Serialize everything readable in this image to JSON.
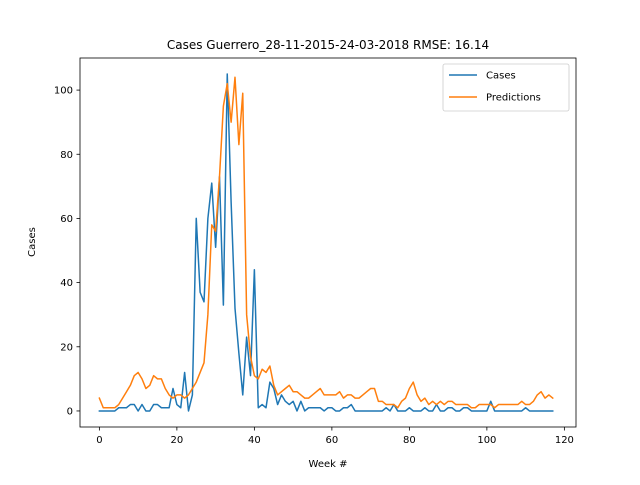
{
  "chart_data": {
    "type": "line",
    "title": "Cases Guerrero_28-11-2015-24-03-2018 RMSE: 16.14",
    "xlabel": "Week #",
    "ylabel": "Cases",
    "xlim": [
      -5,
      123
    ],
    "ylim": [
      -5,
      110
    ],
    "xticks": [
      0,
      20,
      40,
      60,
      80,
      100,
      120
    ],
    "yticks": [
      0,
      20,
      40,
      60,
      80,
      100
    ],
    "xtick_labels": [
      "0",
      "20",
      "40",
      "60",
      "80",
      "100",
      "120"
    ],
    "ytick_labels": [
      "0",
      "20",
      "40",
      "60",
      "80",
      "100"
    ],
    "grid": false,
    "legend_position": "top-right",
    "series": [
      {
        "name": "Cases",
        "color": "#1f77b4",
        "x": [
          0,
          1,
          2,
          3,
          4,
          5,
          6,
          7,
          8,
          9,
          10,
          11,
          12,
          13,
          14,
          15,
          16,
          17,
          18,
          19,
          20,
          21,
          22,
          23,
          24,
          25,
          26,
          27,
          28,
          29,
          30,
          31,
          32,
          33,
          34,
          35,
          36,
          37,
          38,
          39,
          40,
          41,
          42,
          43,
          44,
          45,
          46,
          47,
          48,
          49,
          50,
          51,
          52,
          53,
          54,
          55,
          56,
          57,
          58,
          59,
          60,
          61,
          62,
          63,
          64,
          65,
          66,
          67,
          68,
          69,
          70,
          71,
          72,
          73,
          74,
          75,
          76,
          77,
          78,
          79,
          80,
          81,
          82,
          83,
          84,
          85,
          86,
          87,
          88,
          89,
          90,
          91,
          92,
          93,
          94,
          95,
          96,
          97,
          98,
          99,
          100,
          101,
          102,
          103,
          104,
          105,
          106,
          107,
          108,
          109,
          110,
          111,
          112,
          113,
          114,
          115,
          116,
          117
        ],
        "values": [
          0,
          0,
          0,
          0,
          0,
          1,
          1,
          1,
          2,
          2,
          0,
          2,
          0,
          0,
          2,
          2,
          1,
          1,
          1,
          7,
          2,
          1,
          12,
          0,
          5,
          60,
          37,
          34,
          60,
          71,
          51,
          73,
          33,
          105,
          65,
          32,
          18,
          5,
          23,
          11,
          44,
          1,
          2,
          1,
          9,
          7,
          2,
          5,
          3,
          2,
          3,
          0,
          3,
          0,
          1,
          1,
          1,
          1,
          0,
          1,
          1,
          0,
          0,
          1,
          1,
          2,
          0,
          0,
          0,
          0,
          0,
          0,
          0,
          0,
          1,
          0,
          2,
          0,
          0,
          0,
          1,
          0,
          0,
          0,
          1,
          0,
          0,
          2,
          0,
          0,
          1,
          1,
          0,
          0,
          1,
          1,
          0,
          0,
          0,
          0,
          0,
          3,
          0,
          0,
          0,
          0,
          0,
          0,
          0,
          0,
          1,
          0,
          0,
          0,
          0,
          0,
          0,
          0
        ]
      },
      {
        "name": "Predictions",
        "color": "#ff7f0e",
        "x": [
          0,
          1,
          2,
          3,
          4,
          5,
          6,
          7,
          8,
          9,
          10,
          11,
          12,
          13,
          14,
          15,
          16,
          17,
          18,
          19,
          20,
          21,
          22,
          23,
          24,
          25,
          26,
          27,
          28,
          29,
          30,
          31,
          32,
          33,
          34,
          35,
          36,
          37,
          38,
          39,
          40,
          41,
          42,
          43,
          44,
          45,
          46,
          47,
          48,
          49,
          50,
          51,
          52,
          53,
          54,
          55,
          56,
          57,
          58,
          59,
          60,
          61,
          62,
          63,
          64,
          65,
          66,
          67,
          68,
          69,
          70,
          71,
          72,
          73,
          74,
          75,
          76,
          77,
          78,
          79,
          80,
          81,
          82,
          83,
          84,
          85,
          86,
          87,
          88,
          89,
          90,
          91,
          92,
          93,
          94,
          95,
          96,
          97,
          98,
          99,
          100,
          101,
          102,
          103,
          104,
          105,
          106,
          107,
          108,
          109,
          110,
          111,
          112,
          113,
          114,
          115,
          116,
          117
        ],
        "values": [
          4,
          1,
          1,
          1,
          1,
          2,
          4,
          6,
          8,
          11,
          12,
          10,
          7,
          8,
          11,
          10,
          10,
          7,
          5,
          4,
          5,
          5,
          4,
          5,
          7,
          9,
          12,
          15,
          30,
          58,
          56,
          73,
          95,
          102,
          90,
          104,
          83,
          99,
          30,
          17,
          11,
          10,
          13,
          12,
          14,
          8,
          5,
          6,
          7,
          8,
          6,
          6,
          5,
          4,
          4,
          5,
          6,
          7,
          5,
          5,
          5,
          5,
          6,
          4,
          5,
          5,
          4,
          4,
          5,
          6,
          7,
          7,
          3,
          3,
          2,
          2,
          2,
          1,
          3,
          4,
          7,
          9,
          5,
          3,
          4,
          2,
          3,
          2,
          3,
          2,
          3,
          3,
          2,
          2,
          2,
          2,
          1,
          1,
          2,
          2,
          2,
          2,
          1,
          2,
          2,
          2,
          2,
          2,
          2,
          3,
          2,
          2,
          3,
          5,
          6,
          4,
          5,
          4
        ]
      }
    ]
  }
}
